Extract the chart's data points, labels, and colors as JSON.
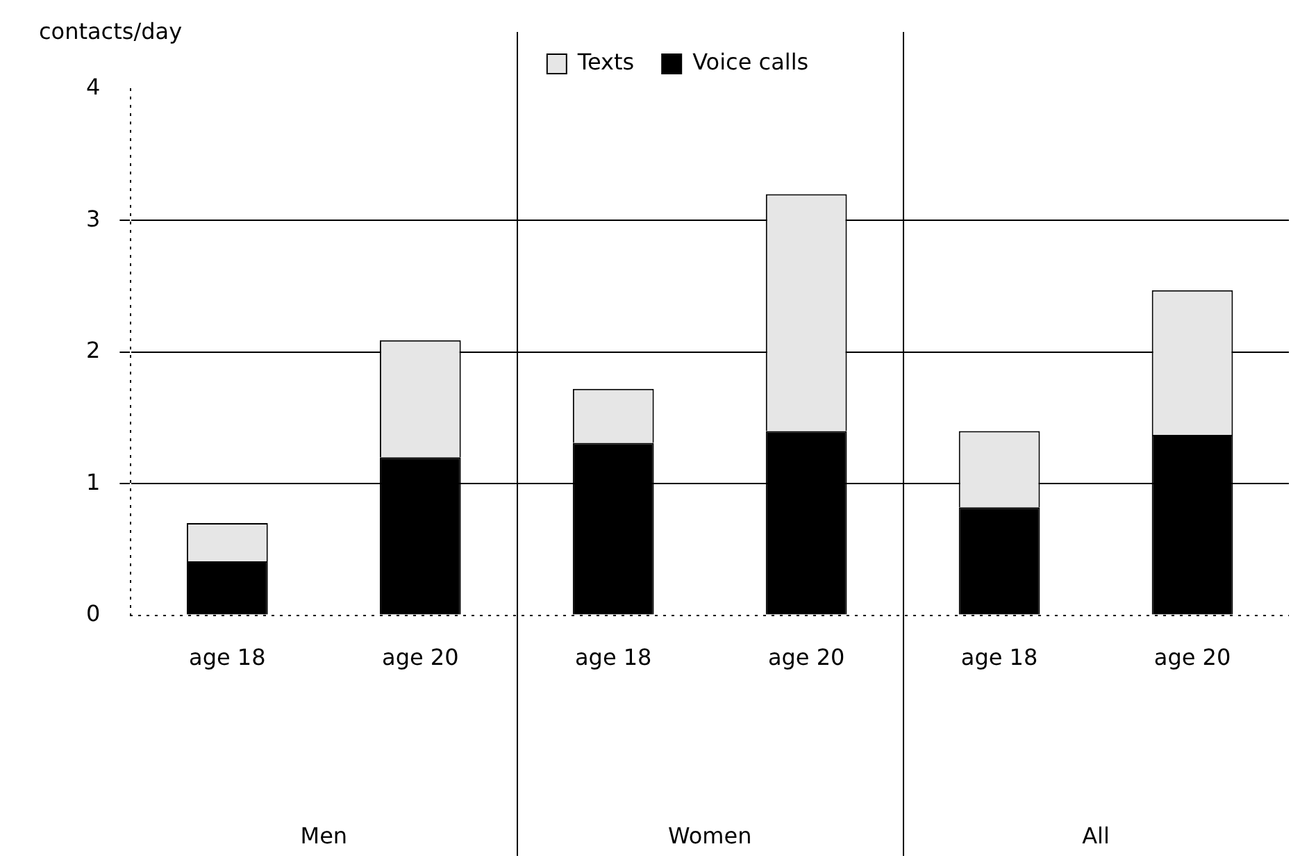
{
  "chart_data": {
    "type": "bar",
    "ylabel": "contacts/day",
    "stacked": true,
    "categories": [
      "age 18",
      "age 20",
      "age 18",
      "age 20",
      "age 18",
      "age 20"
    ],
    "series": [
      {
        "name": "Voice calls",
        "color": "#000000",
        "values": [
          0.41,
          1.2,
          1.31,
          1.4,
          0.82,
          1.37
        ]
      },
      {
        "name": "Texts",
        "color": "#e6e6e6",
        "values": [
          0.29,
          0.89,
          0.41,
          1.8,
          0.58,
          1.1
        ]
      }
    ],
    "ylim": [
      0,
      4
    ],
    "yticks": [
      0,
      1,
      2,
      3,
      4
    ],
    "grid": "y",
    "legend": "top",
    "annotations": [
      "Men",
      "Women",
      "All"
    ]
  }
}
